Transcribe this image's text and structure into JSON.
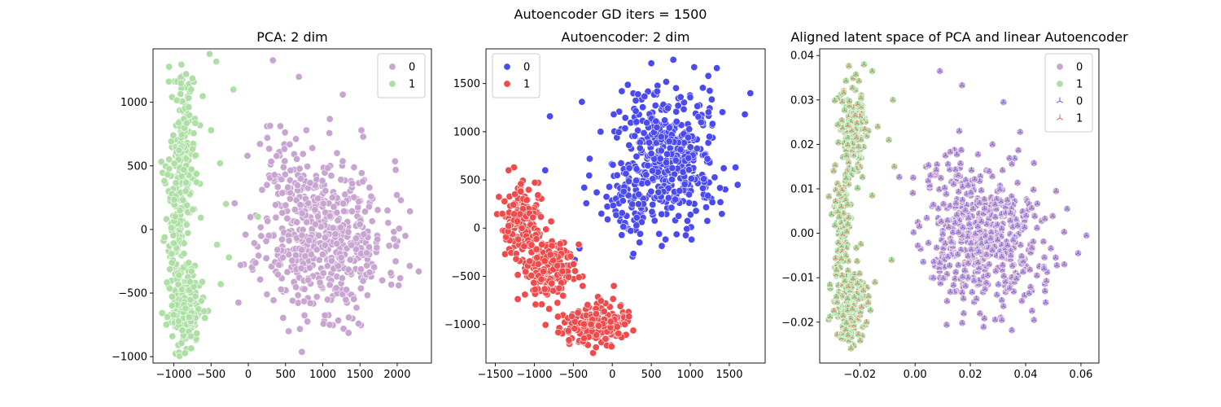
{
  "figure": {
    "title": "Autoencoder GD iters = 1500"
  },
  "chart_data": [
    {
      "type": "scatter",
      "title": "PCA: 2 dim",
      "xlabel": "",
      "ylabel": "",
      "xlim": [
        -1280,
        2460
      ],
      "ylim": [
        -1050,
        1420
      ],
      "xticks": [
        -1000,
        -500,
        0,
        500,
        1000,
        1500,
        2000
      ],
      "yticks": [
        -1000,
        -500,
        0,
        500,
        1000
      ],
      "grid": false,
      "legend": {
        "placement": "top-right",
        "entries": [
          {
            "label": "0",
            "color": "#c9a6d1",
            "marker": "circle"
          },
          {
            "label": "1",
            "color": "#aee0a6",
            "marker": "circle"
          }
        ]
      },
      "series": [
        {
          "name": "0",
          "color": "#c9a6d1",
          "marker": "circle",
          "points": [
            [
              330,
              1330
            ],
            [
              680,
              1200
            ],
            [
              1270,
              1060
            ],
            [
              780,
              780
            ],
            [
              1520,
              780
            ],
            [
              860,
              640
            ],
            [
              420,
              580
            ],
            [
              1100,
              500
            ],
            [
              660,
              430
            ],
            [
              1380,
              380
            ],
            [
              250,
              350
            ],
            [
              2050,
              230
            ],
            [
              990,
              270
            ],
            [
              1630,
              210
            ],
            [
              1870,
              150
            ],
            [
              100,
              110
            ],
            [
              580,
              50
            ],
            [
              1200,
              -20
            ],
            [
              2110,
              -50
            ],
            [
              1460,
              -110
            ],
            [
              760,
              -200
            ],
            [
              1980,
              -250
            ],
            [
              370,
              -330
            ],
            [
              1650,
              -370
            ],
            [
              2290,
              -330
            ],
            [
              1100,
              -420
            ],
            [
              2020,
              -440
            ],
            [
              1280,
              -780
            ],
            [
              800,
              -540
            ],
            [
              1400,
              -700
            ],
            [
              250,
              -510
            ],
            [
              1800,
              -400
            ],
            [
              1050,
              -100
            ]
          ],
          "clusters": [
            {
              "n": 520,
              "cx": 1000,
              "cy": -60,
              "sx": 420,
              "sy": 300,
              "seed": 11
            },
            {
              "n": 35,
              "cx": 520,
              "cy": 520,
              "sx": 200,
              "sy": 150,
              "seed": 12
            }
          ]
        },
        {
          "name": "1",
          "color": "#aee0a6",
          "marker": "circle",
          "points": [
            [
              -520,
              1380
            ],
            [
              -430,
              1320
            ],
            [
              -200,
              1100
            ],
            [
              -500,
              780
            ],
            [
              -380,
              520
            ],
            [
              -650,
              360
            ],
            [
              -300,
              200
            ],
            [
              -420,
              -120
            ],
            [
              -260,
              -220
            ],
            [
              -370,
              -430
            ],
            [
              -540,
              -640
            ],
            [
              130,
              100
            ],
            [
              -830,
              -940
            ],
            [
              -700,
              -870
            ]
          ],
          "clusters": [
            {
              "n": 160,
              "cx": -860,
              "cy": 640,
              "sx": 100,
              "sy": 300,
              "seed": 21
            },
            {
              "n": 120,
              "cx": -960,
              "cy": 0,
              "sx": 60,
              "sy": 260,
              "seed": 22
            },
            {
              "n": 170,
              "cx": -860,
              "cy": -620,
              "sx": 110,
              "sy": 140,
              "seed": 23
            }
          ]
        }
      ]
    },
    {
      "type": "scatter",
      "title": "Autoencoder: 2 dim",
      "xlabel": "",
      "ylabel": "",
      "xlim": [
        -1620,
        1960
      ],
      "ylim": [
        -1400,
        1860
      ],
      "xticks": [
        -1500,
        -1000,
        -500,
        0,
        500,
        1000,
        1500
      ],
      "yticks": [
        -1000,
        -500,
        0,
        500,
        1000,
        1500
      ],
      "grid": false,
      "legend": {
        "placement": "top-left",
        "entries": [
          {
            "label": "0",
            "color": "#4a4af0",
            "marker": "circle"
          },
          {
            "label": "1",
            "color": "#f04a4a",
            "marker": "circle"
          }
        ]
      },
      "series": [
        {
          "name": "0",
          "color": "#4a4af0",
          "marker": "circle",
          "points": [
            [
              500,
              1710
            ],
            [
              1340,
              1660
            ],
            [
              1050,
              1670
            ],
            [
              -390,
              1310
            ],
            [
              -800,
              1160
            ],
            [
              -860,
              600
            ],
            [
              -360,
              420
            ],
            [
              -200,
              370
            ],
            [
              -290,
              720
            ],
            [
              -150,
              1000
            ],
            [
              -140,
              150
            ],
            [
              100,
              150
            ],
            [
              -60,
              90
            ],
            [
              -480,
              -330
            ],
            [
              -420,
              -210
            ],
            [
              1770,
              1400
            ],
            [
              1580,
              630
            ],
            [
              300,
              -20
            ],
            [
              600,
              -60
            ],
            [
              1700,
              1180
            ]
          ],
          "clusters": [
            {
              "n": 430,
              "cx": 700,
              "cy": 720,
              "sx": 330,
              "sy": 350,
              "seed": 31
            },
            {
              "n": 50,
              "cx": 220,
              "cy": 260,
              "sx": 200,
              "sy": 150,
              "seed": 32
            }
          ]
        },
        {
          "name": "1",
          "color": "#f04a4a",
          "marker": "circle",
          "points": [
            [
              -1260,
              630
            ],
            [
              -1330,
              600
            ],
            [
              -950,
              470
            ],
            [
              -720,
              -180
            ],
            [
              -540,
              -270
            ],
            [
              -380,
              -600
            ],
            [
              20,
              -600
            ],
            [
              110,
              -800
            ],
            [
              -430,
              -170
            ],
            [
              -80,
              -960
            ],
            [
              -650,
              -150
            ]
          ],
          "clusters": [
            {
              "n": 150,
              "cx": -1150,
              "cy": 80,
              "sx": 140,
              "sy": 170,
              "seed": 41
            },
            {
              "n": 160,
              "cx": -850,
              "cy": -420,
              "sx": 190,
              "sy": 180,
              "seed": 42
            },
            {
              "n": 200,
              "cx": -200,
              "cy": -1000,
              "sx": 220,
              "sy": 110,
              "seed": 43
            }
          ]
        }
      ]
    },
    {
      "type": "scatter",
      "title": "Aligned latent space of PCA and linear Autoencoder",
      "xlabel": "",
      "ylabel": "",
      "xlim": [
        -0.0345,
        0.0665
      ],
      "ylim": [
        -0.0292,
        0.0415
      ],
      "xticks": [
        -0.02,
        0.0,
        0.02,
        0.04,
        0.06
      ],
      "xtick_labels": [
        "−0.02",
        "0.00",
        "0.02",
        "0.04",
        "0.06"
      ],
      "yticks": [
        -0.02,
        -0.01,
        0.0,
        0.01,
        0.02,
        0.03,
        0.04
      ],
      "ytick_labels": [
        "−0.02",
        "−0.01",
        "0.00",
        "0.01",
        "0.02",
        "0.03",
        "0.04"
      ],
      "grid": false,
      "legend": {
        "placement": "top-right",
        "entries": [
          {
            "label": "0",
            "color": "#c9a6d1",
            "marker": "circle"
          },
          {
            "label": "1",
            "color": "#aee0a6",
            "marker": "circle"
          },
          {
            "label": "0",
            "color": "#4a4af0",
            "marker": "tri-down"
          },
          {
            "label": "1",
            "color": "#f04a4a",
            "marker": "tri-down"
          }
        ]
      },
      "series": [
        {
          "name": "0",
          "color": "#c9a6d1",
          "marker": "circle",
          "overlay_color": "#4a4af0",
          "points": [
            [
              0.009,
              0.0365
            ],
            [
              0.017,
              0.0333
            ],
            [
              0.032,
              0.0295
            ],
            [
              0.016,
              0.023
            ],
            [
              0.038,
              0.0228
            ],
            [
              0.028,
              0.02
            ],
            [
              0.011,
              0.0175
            ],
            [
              0.043,
              0.0158
            ],
            [
              0.004,
              0.015
            ],
            [
              0.022,
              0.012
            ],
            [
              0.051,
              0.0095
            ],
            [
              0.055,
              0.0055
            ],
            [
              0.062,
              -0.0005
            ],
            [
              0.059,
              -0.0045
            ],
            [
              0.031,
              -0.019
            ],
            [
              0.035,
              -0.0218
            ],
            [
              0.043,
              -0.0195
            ],
            [
              0.002,
              -0.0035
            ],
            [
              0.001,
              0.0025
            ],
            [
              0.006,
              -0.01
            ],
            [
              0.047,
              -0.013
            ],
            [
              0.054,
              -0.007
            ]
          ],
          "clusters": [
            {
              "n": 480,
              "cx": 0.026,
              "cy": -0.002,
              "sx": 0.0105,
              "sy": 0.0075,
              "seed": 51
            },
            {
              "n": 30,
              "cx": 0.012,
              "cy": 0.013,
              "sx": 0.005,
              "sy": 0.0035,
              "seed": 52
            }
          ]
        },
        {
          "name": "1",
          "color": "#aee0a6",
          "marker": "circle",
          "overlay_color": "#f04a4a",
          "points": [
            [
              -0.0185,
              0.038
            ],
            [
              -0.0155,
              0.0365
            ],
            [
              -0.008,
              0.03
            ],
            [
              -0.0135,
              0.024
            ],
            [
              -0.0095,
              0.021
            ],
            [
              -0.0075,
              0.015
            ],
            [
              -0.0195,
              0.017
            ],
            [
              -0.0155,
              0.0085
            ],
            [
              -0.0085,
              -0.006
            ],
            [
              -0.0145,
              -0.011
            ],
            [
              -0.0175,
              -0.016
            ],
            [
              -0.0225,
              -0.025
            ]
          ],
          "clusters": [
            {
              "n": 160,
              "cx": -0.0225,
              "cy": 0.024,
              "sx": 0.0025,
              "sy": 0.0055,
              "seed": 61
            },
            {
              "n": 120,
              "cx": -0.0265,
              "cy": 0.003,
              "sx": 0.0015,
              "sy": 0.007,
              "seed": 62
            },
            {
              "n": 170,
              "cx": -0.0235,
              "cy": -0.016,
              "sx": 0.0028,
              "sy": 0.0045,
              "seed": 63
            }
          ]
        }
      ]
    }
  ]
}
